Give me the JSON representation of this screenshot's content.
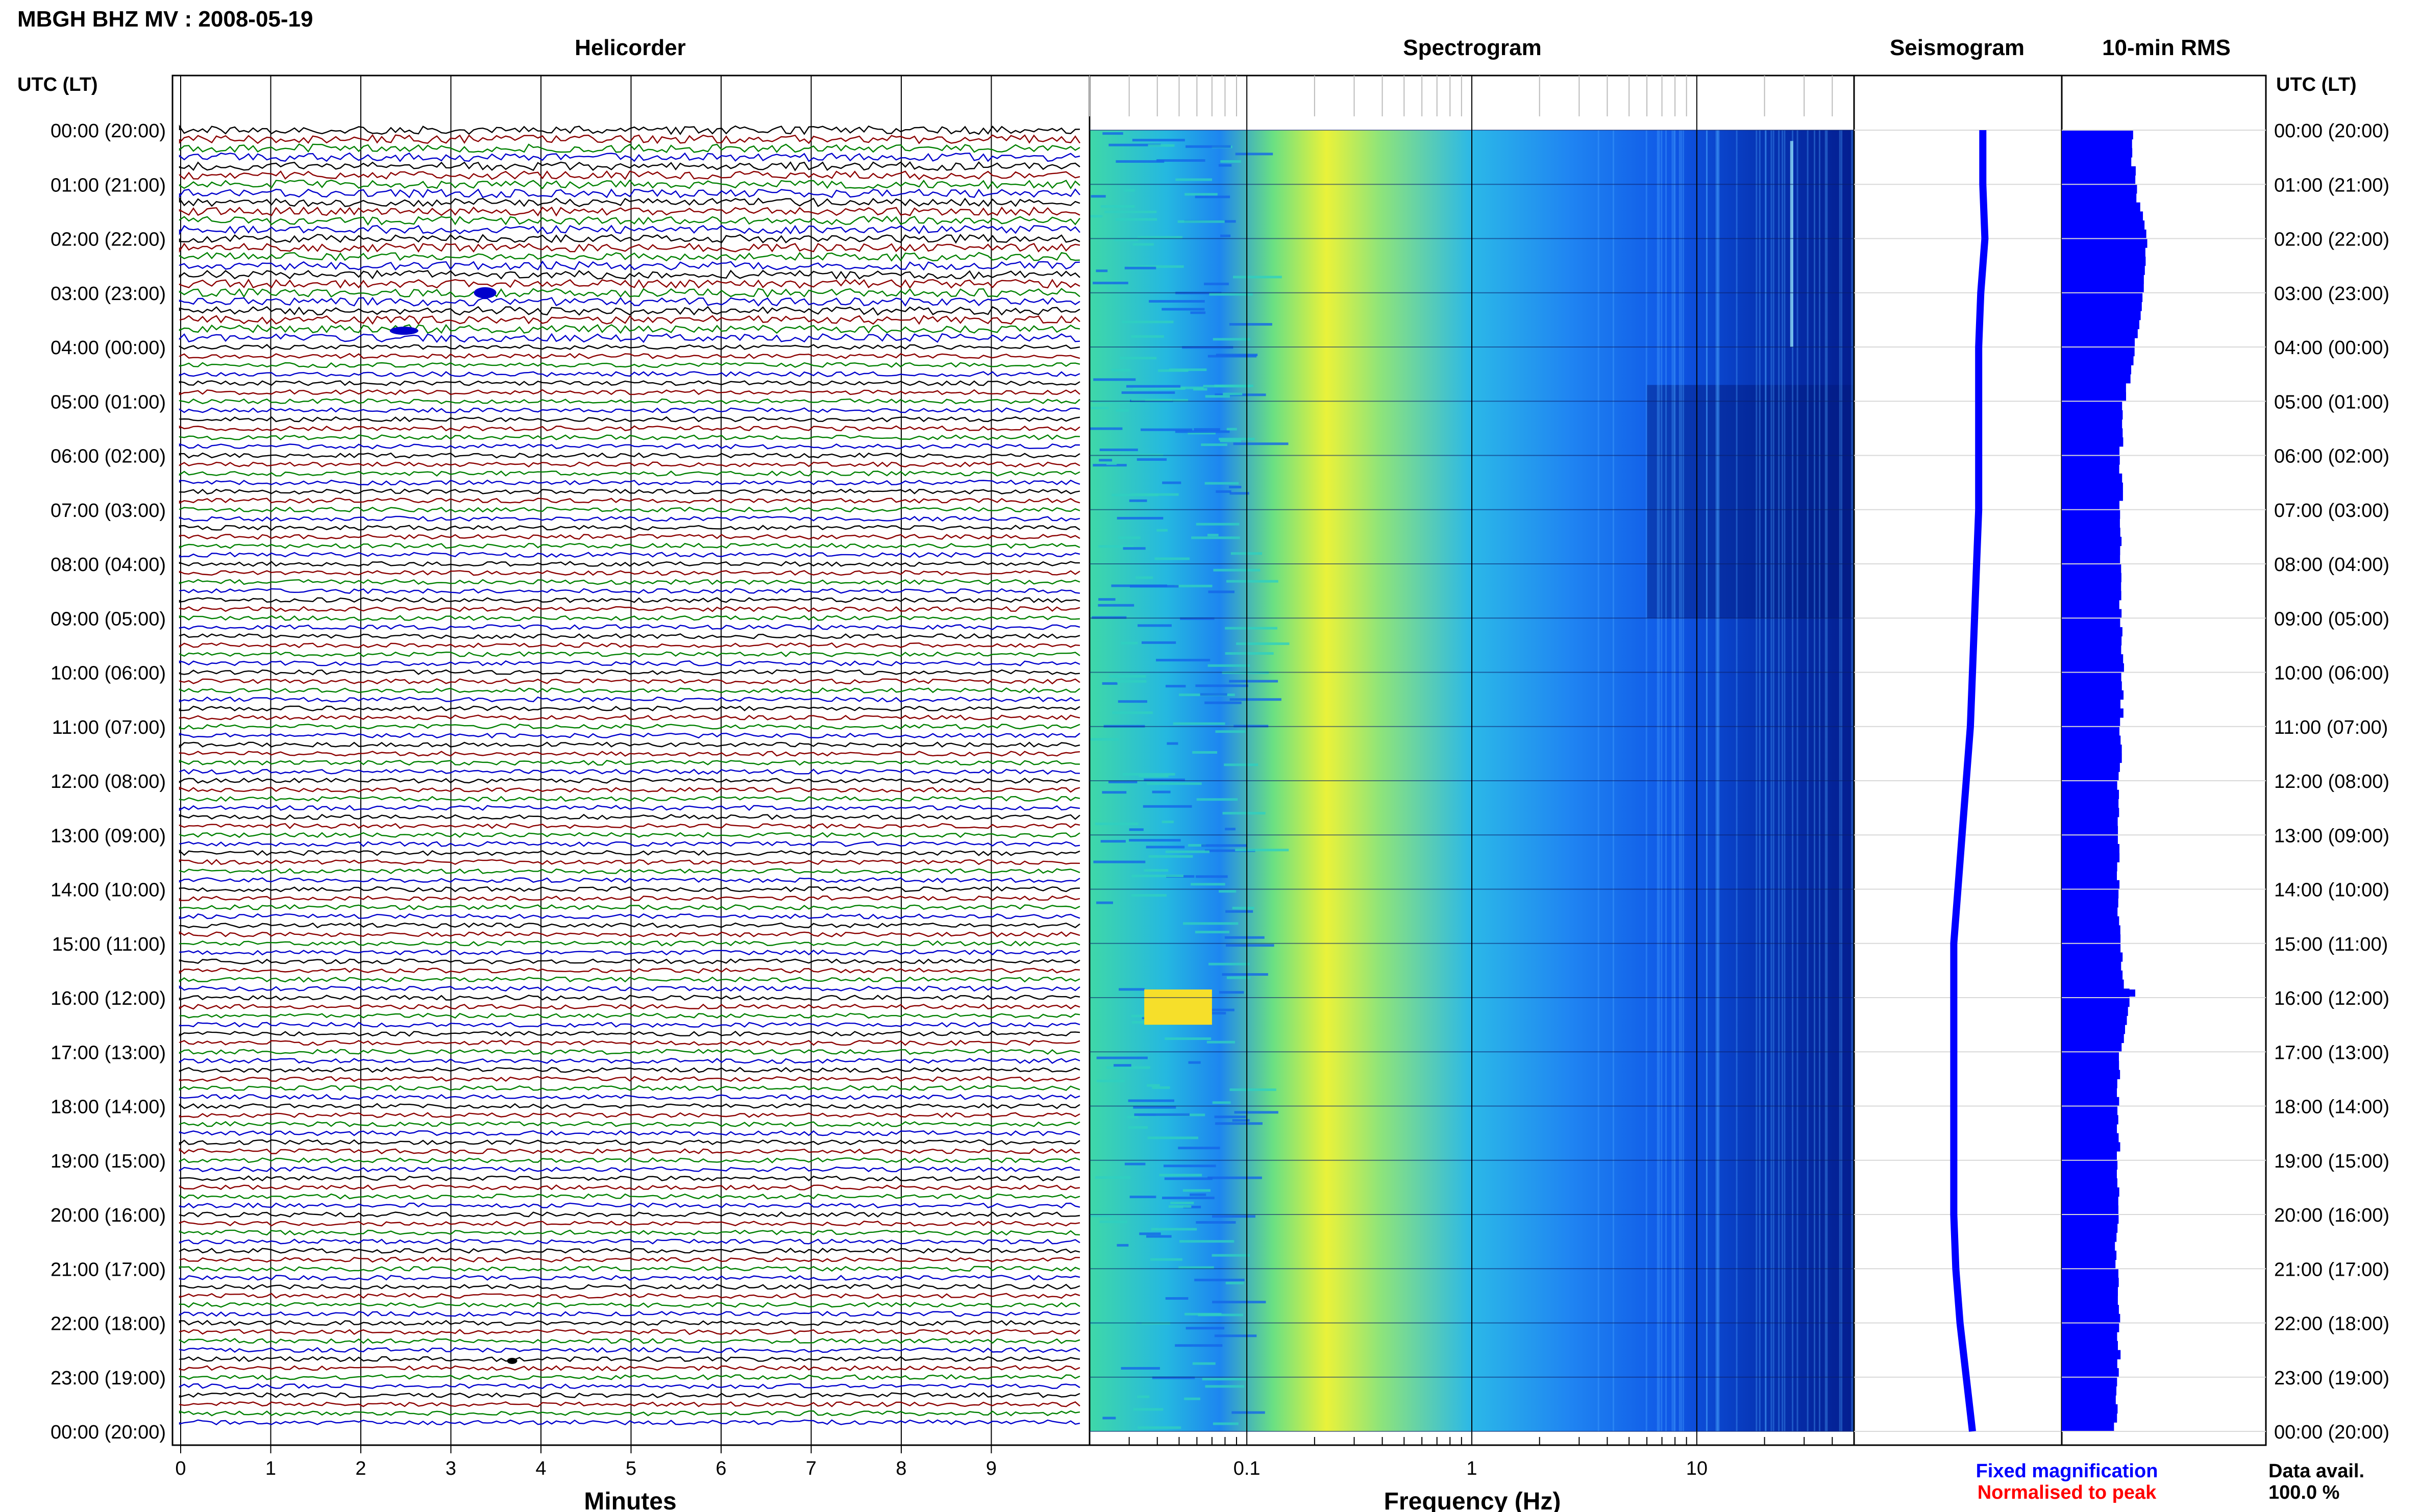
{
  "title": "MBGH BHZ MV : 2008-05-19",
  "panels": {
    "helicorder": "Helicorder",
    "spectrogram": "Spectrogram",
    "seismogram": "Seismogram",
    "rms": "10-min RMS"
  },
  "axis_header_left": "UTC (LT)",
  "axis_header_right": "UTC (LT)",
  "helicorder_xlabel": "Minutes",
  "spectrogram_xlabel": "Frequency (Hz)",
  "legend": {
    "fixed": "Fixed magnification",
    "normalised": "Normalised to peak",
    "fixed_color": "#0000ff",
    "normalised_color": "#ff0000"
  },
  "data_avail": {
    "label": "Data avail.",
    "value": "100.0 %"
  },
  "colors": {
    "trace_cycle": [
      "#000000",
      "#8b0000",
      "#008000",
      "#0000cc"
    ],
    "seismogram": "#0000ff",
    "rms": "#0000ff"
  },
  "chart_data": {
    "type": "heatmap",
    "time_labels": [
      "00:00 (20:00)",
      "01:00 (21:00)",
      "02:00 (22:00)",
      "03:00 (23:00)",
      "04:00 (00:00)",
      "05:00 (01:00)",
      "06:00 (02:00)",
      "07:00 (03:00)",
      "08:00 (04:00)",
      "09:00 (05:00)",
      "10:00 (06:00)",
      "11:00 (07:00)",
      "12:00 (08:00)",
      "13:00 (09:00)",
      "14:00 (10:00)",
      "15:00 (11:00)",
      "16:00 (12:00)",
      "17:00 (13:00)",
      "18:00 (14:00)",
      "19:00 (15:00)",
      "20:00 (16:00)",
      "21:00 (17:00)",
      "22:00 (18:00)",
      "23:00 (19:00)",
      "00:00 (20:00)"
    ],
    "helicorder": {
      "x_ticks": [
        "0",
        "1",
        "2",
        "3",
        "4",
        "5",
        "6",
        "7",
        "8",
        "9"
      ],
      "xlim": [
        0,
        10
      ],
      "minutes_per_line": 10,
      "lines": 144
    },
    "spectrogram": {
      "x_ticks": [
        "0.1",
        "1",
        "10"
      ],
      "x_tick_values": [
        0.1,
        1,
        10
      ],
      "xlim": [
        0.02,
        50
      ],
      "xscale": "log"
    },
    "seismogram": {
      "position": [
        0.62,
        0.62,
        0.63,
        0.61,
        0.6,
        0.6,
        0.6,
        0.6,
        0.59,
        0.58,
        0.57,
        0.56,
        0.54,
        0.52,
        0.5,
        0.48,
        0.48,
        0.48,
        0.48,
        0.48,
        0.48,
        0.49,
        0.51,
        0.54,
        0.57
      ]
    },
    "rms_10min": [
      0.34,
      0.36,
      0.42,
      0.4,
      0.36,
      0.3,
      0.29,
      0.29,
      0.29,
      0.29,
      0.3,
      0.29,
      0.28,
      0.28,
      0.28,
      0.28,
      0.33,
      0.28,
      0.27,
      0.28,
      0.27,
      0.27,
      0.28,
      0.28,
      0.26
    ]
  }
}
